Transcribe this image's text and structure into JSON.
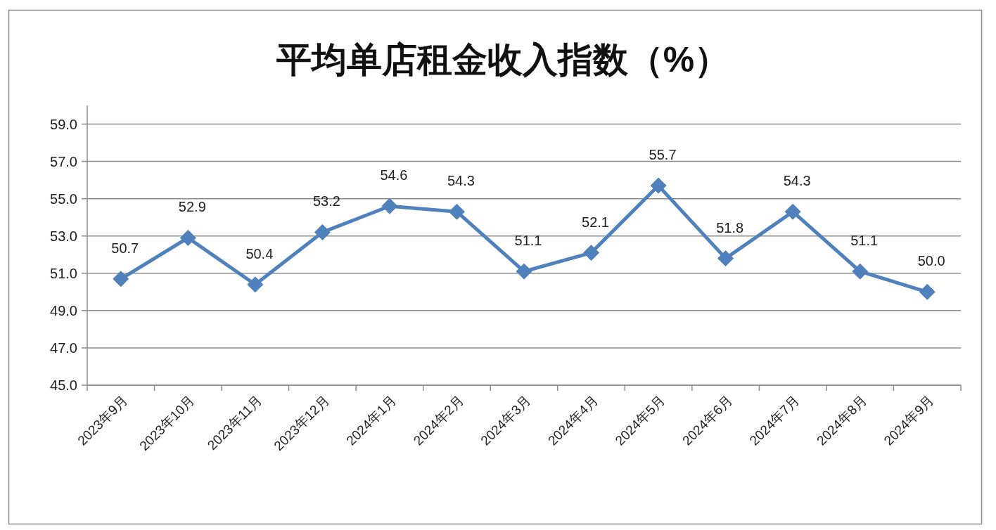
{
  "chart_data": {
    "type": "line",
    "title": "平均单店租金收入指数（%）",
    "categories": [
      "2023年9月",
      "2023年10月",
      "2023年11月",
      "2023年12月",
      "2024年1月",
      "2024年2月",
      "2024年3月",
      "2024年4月",
      "2024年5月",
      "2024年6月",
      "2024年7月",
      "2024年8月",
      "2024年9月"
    ],
    "series": [
      {
        "color": "#4f81bd",
        "values": [
          50.7,
          52.9,
          50.4,
          53.2,
          54.6,
          54.3,
          51.1,
          52.1,
          55.7,
          51.8,
          54.3,
          51.1,
          50.0
        ],
        "value_labels": [
          "50.7",
          "52.9",
          "50.4",
          "53.2",
          "54.6",
          "54.3",
          "51.1",
          "52.1",
          "55.7",
          "51.8",
          "54.3",
          "51.1",
          "50.0"
        ]
      }
    ],
    "ylim": [
      45,
      60
    ],
    "yticks": [
      {
        "value": 45,
        "label": "45.0"
      },
      {
        "value": 47,
        "label": "47.0"
      },
      {
        "value": 49,
        "label": "49.0"
      },
      {
        "value": 51,
        "label": "51.0"
      },
      {
        "value": 53,
        "label": "53.0"
      },
      {
        "value": 55,
        "label": "55.0"
      },
      {
        "value": 57,
        "label": "57.0"
      },
      {
        "value": 59,
        "label": "59.0"
      }
    ],
    "grid": "y",
    "marker": "diamond",
    "line_style": "solid"
  }
}
